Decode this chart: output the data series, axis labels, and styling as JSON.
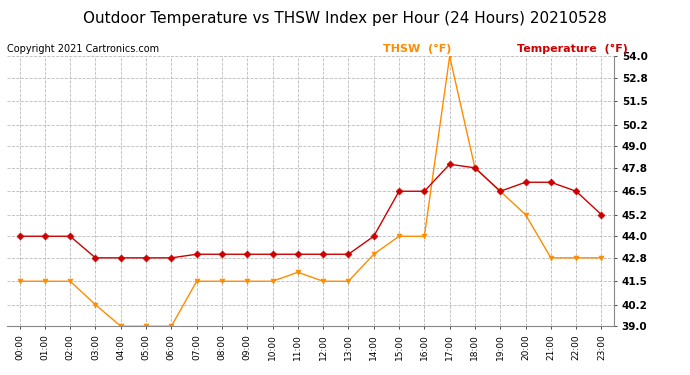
{
  "title": "Outdoor Temperature vs THSW Index per Hour (24 Hours) 20210528",
  "copyright": "Copyright 2021 Cartronics.com",
  "hours": [
    "00:00",
    "01:00",
    "02:00",
    "03:00",
    "04:00",
    "05:00",
    "06:00",
    "07:00",
    "08:00",
    "09:00",
    "10:00",
    "11:00",
    "12:00",
    "13:00",
    "14:00",
    "15:00",
    "16:00",
    "17:00",
    "18:00",
    "19:00",
    "20:00",
    "21:00",
    "22:00",
    "23:00"
  ],
  "temperature": [
    44.0,
    44.0,
    44.0,
    42.8,
    42.8,
    42.8,
    42.8,
    43.0,
    43.0,
    43.0,
    43.0,
    43.0,
    43.0,
    43.0,
    44.0,
    46.5,
    46.5,
    48.0,
    47.8,
    46.5,
    47.0,
    47.0,
    46.5,
    45.2
  ],
  "thsw": [
    41.5,
    41.5,
    41.5,
    40.2,
    39.0,
    39.0,
    39.0,
    41.5,
    41.5,
    41.5,
    41.5,
    42.0,
    41.5,
    41.5,
    43.0,
    44.0,
    44.0,
    54.0,
    47.8,
    46.5,
    45.2,
    42.8,
    42.8,
    42.8
  ],
  "temp_color": "#cc0000",
  "thsw_color": "#ff8c00",
  "ylim_min": 39.0,
  "ylim_max": 54.0,
  "yticks": [
    39.0,
    40.2,
    41.5,
    42.8,
    44.0,
    45.2,
    46.5,
    47.8,
    49.0,
    50.2,
    51.5,
    52.8,
    54.0
  ],
  "background_color": "#ffffff",
  "grid_color": "#bbbbbb",
  "title_fontsize": 11,
  "copyright_fontsize": 7,
  "legend_thsw": "THSW  (°F)",
  "legend_temp": "Temperature  (°F)",
  "marker_temp": "D",
  "marker_thsw": "v",
  "linewidth": 1.0,
  "markersize": 3.5
}
